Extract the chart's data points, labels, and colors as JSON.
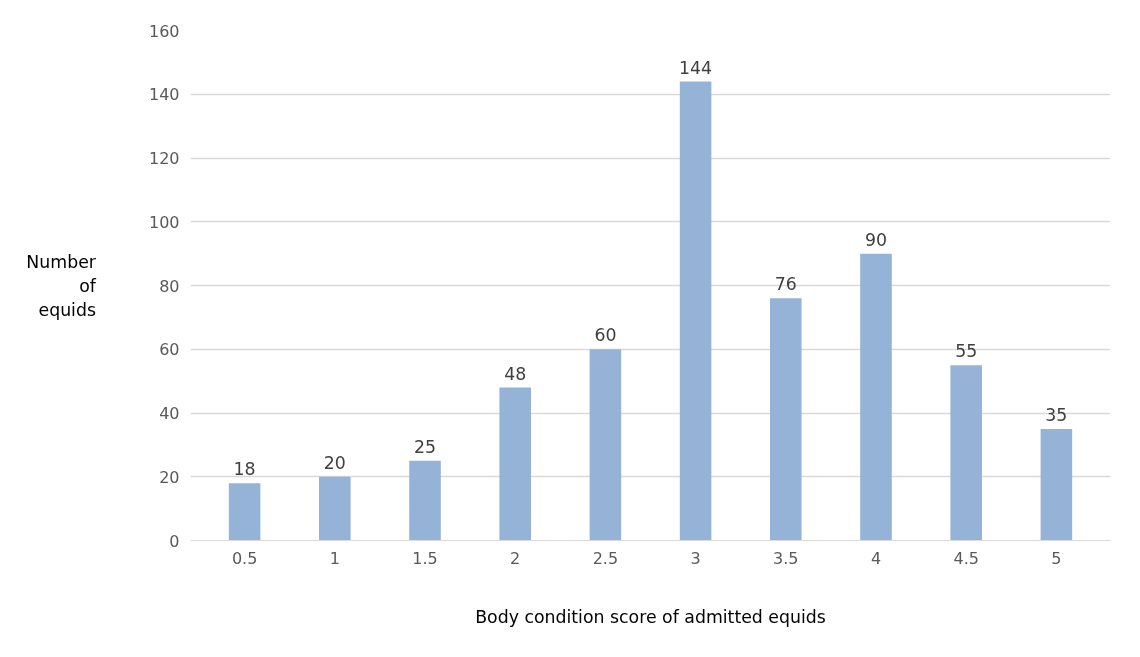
{
  "chart_data": {
    "type": "bar",
    "xlabel": "Body condition score of admitted equids",
    "ylabel": "Number of equids",
    "categories": [
      "0.5",
      "1",
      "1.5",
      "2",
      "2.5",
      "3",
      "3.5",
      "4",
      "4.5",
      "5"
    ],
    "values": [
      18,
      20,
      25,
      48,
      60,
      144,
      76,
      90,
      55,
      35
    ],
    "color": "#95b3d7",
    "ylim": [
      0,
      160
    ],
    "yticks": [
      0,
      20,
      40,
      60,
      80,
      100,
      120,
      140,
      160
    ],
    "grid": "y",
    "data_labels": true
  }
}
